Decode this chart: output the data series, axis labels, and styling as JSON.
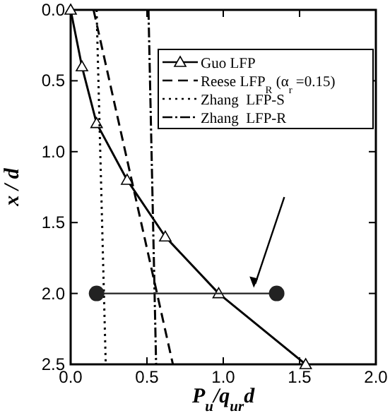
{
  "chart_data": {
    "type": "line",
    "xlabel": "P$_{u}$/q$_{ur}$d",
    "ylabel": "x / d",
    "xlim": [
      0,
      2
    ],
    "ylim": [
      2.5,
      0
    ],
    "xticks": [
      {
        "value": 0,
        "label": "0.0"
      },
      {
        "value": 0.5,
        "label": "0.5"
      },
      {
        "value": 1,
        "label": "1.0"
      },
      {
        "value": 1.5,
        "label": "1.5"
      },
      {
        "value": 2,
        "label": "2.0"
      }
    ],
    "yticks": [
      {
        "value": 0,
        "label": "0.0"
      },
      {
        "value": 0.5,
        "label": "0.5"
      },
      {
        "value": 1,
        "label": "1.0"
      },
      {
        "value": 1.5,
        "label": "1.5"
      },
      {
        "value": 2,
        "label": "2.0"
      },
      {
        "value": 2.5,
        "label": "2.5"
      }
    ],
    "legend": "top right",
    "grid": false,
    "series": [
      {
        "name": "Guo LFP",
        "color": "#000000",
        "marker": "triangle",
        "line_style": "solid",
        "x": [
          0,
          0.074,
          0.17,
          0.37,
          0.62,
          0.97,
          1.54
        ],
        "values": [
          0,
          0.4,
          0.8,
          1.2,
          1.6,
          2.0,
          2.5
        ]
      },
      {
        "name": "Reese LFP$_{R}$ (α$_{r}$ =0.15)",
        "color": "#000000",
        "marker": "none",
        "line_style": "dashed",
        "x": [
          0.15,
          0.67
        ],
        "values": [
          0,
          2.5
        ]
      },
      {
        "name": "Zhang  LFP-S",
        "color": "#000000",
        "marker": "none",
        "line_style": "dotted",
        "x": [
          0.17,
          0.23
        ],
        "values": [
          0,
          2.5
        ]
      },
      {
        "name": "Zhang  LFP-R",
        "color": "#000000",
        "marker": "none",
        "line_style": "dashdot",
        "x": [
          0.51,
          0.56
        ],
        "values": [
          0,
          2.5
        ]
      },
      {
        "color": "#222222",
        "marker": "circle",
        "line_style": "solid",
        "x": [
          0.17,
          1.35
        ],
        "values": [
          2.0,
          2.0
        ]
      }
    ]
  }
}
